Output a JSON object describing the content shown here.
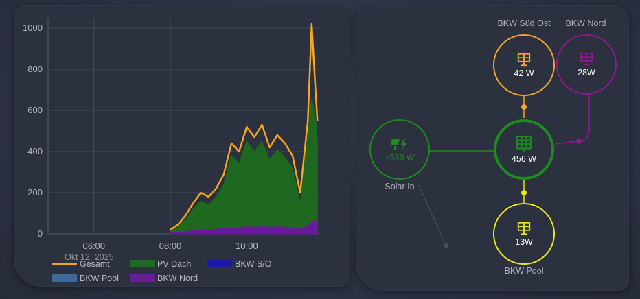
{
  "chart_data": {
    "type": "area",
    "xlabel": "",
    "ylabel": "",
    "ylim": [
      0,
      1050
    ],
    "y_ticks": [
      "0",
      "200",
      "400",
      "600",
      "800",
      "1000"
    ],
    "x_ticks": [
      "06:00",
      "08:00",
      "10:00"
    ],
    "x_range_hours": [
      4.8,
      11.9
    ],
    "date_label": "Okt 12, 2025",
    "grid": true,
    "legend_position": "bottom",
    "x": [
      8.0,
      8.2,
      8.4,
      8.6,
      8.8,
      9.0,
      9.2,
      9.4,
      9.6,
      9.8,
      10.0,
      10.2,
      10.4,
      10.6,
      10.8,
      11.0,
      11.2,
      11.4,
      11.6,
      11.7,
      11.8,
      11.85
    ],
    "series": [
      {
        "name": "Gesamt",
        "kind": "line",
        "color": "#f5a623",
        "values": [
          20,
          45,
          90,
          150,
          200,
          180,
          220,
          290,
          440,
          400,
          520,
          470,
          530,
          420,
          480,
          440,
          380,
          200,
          550,
          1020,
          700,
          550
        ]
      },
      {
        "name": "PV Dach",
        "kind": "area",
        "color": "#1e6b1e",
        "values": [
          15,
          35,
          70,
          120,
          160,
          140,
          180,
          240,
          380,
          340,
          450,
          400,
          450,
          360,
          410,
          370,
          320,
          150,
          480,
          660,
          560,
          460
        ]
      },
      {
        "name": "BKW S/O",
        "kind": "area",
        "color": "#1a1aa8",
        "values": [
          2,
          5,
          8,
          12,
          15,
          16,
          18,
          22,
          25,
          28,
          30,
          28,
          32,
          30,
          30,
          28,
          25,
          24,
          35,
          55,
          60,
          50
        ]
      },
      {
        "name": "BKW Pool",
        "kind": "area",
        "color": "#3d6a9a",
        "values": [
          0,
          0,
          0,
          0,
          0,
          0,
          0,
          0,
          0,
          0,
          0,
          0,
          0,
          0,
          0,
          0,
          0,
          0,
          0,
          0,
          0,
          0
        ]
      },
      {
        "name": "BKW Nord",
        "kind": "area",
        "color": "#6a1b9a",
        "values": [
          3,
          6,
          10,
          14,
          18,
          20,
          22,
          26,
          28,
          30,
          34,
          32,
          35,
          33,
          34,
          32,
          30,
          28,
          38,
          58,
          65,
          55
        ]
      }
    ]
  },
  "flow": {
    "nodes": {
      "bkw_sued_ost": {
        "label": "BKW Süd Ost",
        "value": "42 W",
        "color": "#f5a623",
        "icon": "solar-panel-icon"
      },
      "bkw_nord": {
        "label": "BKW Nord",
        "value": "28W",
        "color": "#8e1a8e",
        "icon": "solar-panel-icon"
      },
      "solar_in": {
        "label": "Solar In",
        "value": "+539 W",
        "color": "#1f8a1f",
        "icon": "solar-power-icon"
      },
      "center": {
        "value": "456 W",
        "color": "#1f8a1f",
        "icon": "solar-panel-grid-icon"
      },
      "bkw_pool": {
        "label": "BKW Pool",
        "value": "13W",
        "color": "#e6e61a",
        "icon": "solar-panel-icon"
      }
    }
  }
}
